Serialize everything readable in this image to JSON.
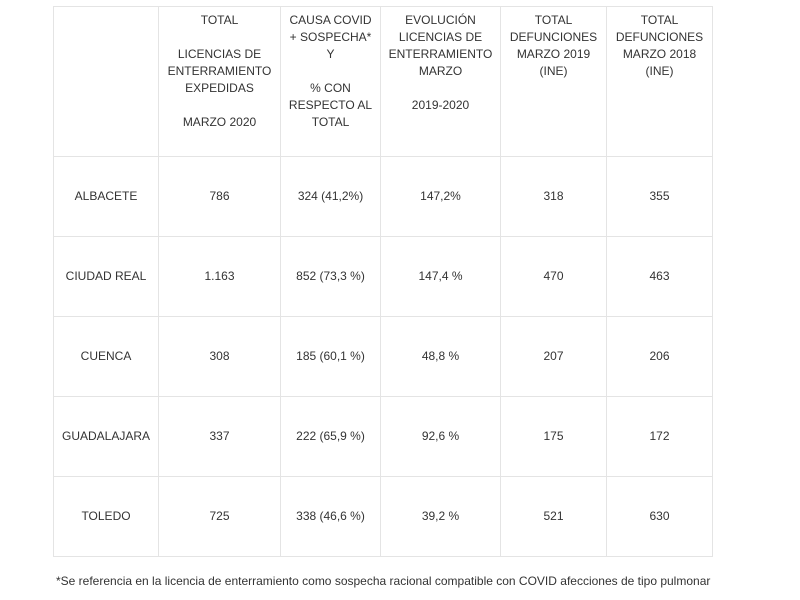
{
  "table": {
    "headers": [
      {
        "lines": [
          ""
        ]
      },
      {
        "lines": [
          "TOTAL",
          "",
          "LICENCIAS DE",
          "ENTERRAMIENTO",
          "EXPEDIDAS",
          "",
          "MARZO 2020"
        ]
      },
      {
        "lines": [
          "CAUSA COVID",
          "+ SOSPECHA*",
          "Y",
          "",
          "% CON",
          "RESPECTO AL",
          "TOTAL"
        ]
      },
      {
        "lines": [
          "EVOLUCIÓN",
          "LICENCIAS DE",
          "ENTERRAMIENTO",
          "MARZO",
          "",
          "2019-2020"
        ]
      },
      {
        "lines": [
          "TOTAL",
          "DEFUNCIONES",
          "MARZO 2019",
          "(INE)"
        ]
      },
      {
        "lines": [
          "TOTAL",
          "DEFUNCIONES",
          "MARZO 2018",
          "(INE)"
        ]
      }
    ],
    "rows": [
      [
        "ALBACETE",
        "786",
        "324 (41,2%)",
        "147,2%",
        "318",
        "355"
      ],
      [
        "CIUDAD REAL",
        "1.163",
        "852 (73,3 %)",
        "147,4 %",
        "470",
        "463"
      ],
      [
        "CUENCA",
        "308",
        "185 (60,1 %)",
        "48,8 %",
        "207",
        "206"
      ],
      [
        "GUADALAJARA",
        "337",
        "222 (65,9 %)",
        "92,6 %",
        "175",
        "172"
      ],
      [
        "TOLEDO",
        "725",
        "338 (46,6 %)",
        "39,2 %",
        "521",
        "630"
      ]
    ]
  },
  "footnote": "*Se referencia en la licencia de enterramiento como sospecha racional compatible con COVID afecciones de tipo pulmonar"
}
